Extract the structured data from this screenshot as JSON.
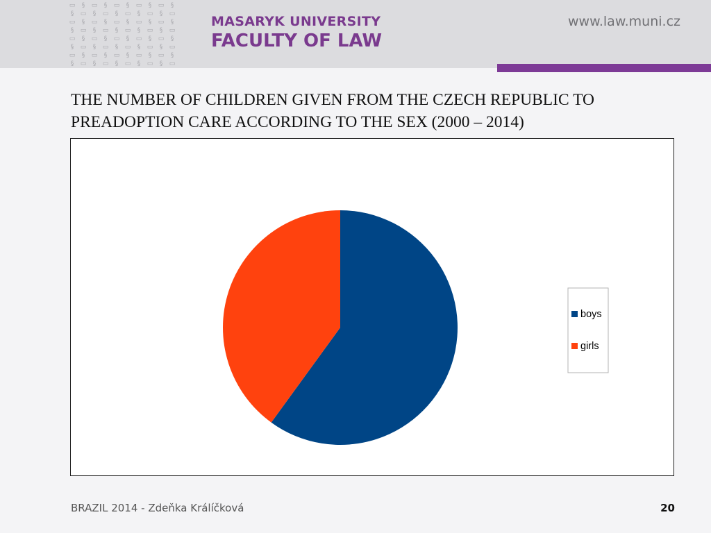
{
  "header": {
    "pattern_glyphs": [
      "▭",
      "§"
    ],
    "university": "MASARYK UNIVERSITY",
    "faculty": "FACULTY OF LAW",
    "website": "www.law.muni.cz"
  },
  "colors": {
    "brand_purple": "#7a3a8e",
    "boys": "#004586",
    "girls": "#ff420e"
  },
  "chart_data": {
    "type": "pie",
    "title": "THE NUMBER OF CHILDREN GIVEN FROM THE CZECH REPUBLIC TO PREADOPTION CARE  ACCORDING TO THE SEX  (2000 – 2014)",
    "categories": [
      "boys",
      "girls"
    ],
    "values": [
      60,
      40
    ],
    "value_unit": "percent (estimated)",
    "legend_position": "right",
    "start_angle": "12 o'clock, clockwise"
  },
  "footer": {
    "text": "BRAZIL 2014 - Zdeňka Králíčková",
    "page_number": "20"
  }
}
